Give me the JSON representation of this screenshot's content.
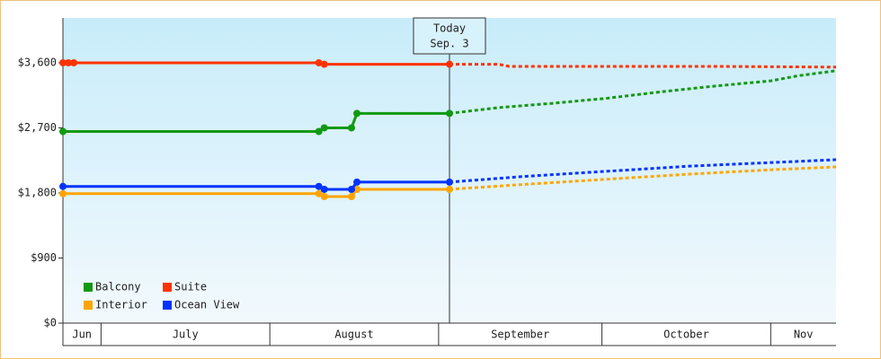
{
  "chart_data": {
    "type": "line",
    "xlim": [
      0,
      142
    ],
    "ylim": [
      0,
      4220
    ],
    "yticks": [
      {
        "value": 0,
        "label": "$0"
      },
      {
        "value": 900,
        "label": "$900"
      },
      {
        "value": 1800,
        "label": "$1,800"
      },
      {
        "value": 2700,
        "label": "$2,700"
      },
      {
        "value": 3600,
        "label": "$3,600"
      }
    ],
    "months": [
      {
        "label": "Jun",
        "end": 7
      },
      {
        "label": "July",
        "end": 38
      },
      {
        "label": "August",
        "end": 69
      },
      {
        "label": "September",
        "end": 99
      },
      {
        "label": "October",
        "end": 130
      },
      {
        "label": "Nov"
      }
    ],
    "today": {
      "x": 71,
      "label": "Today",
      "date": "Sep. 3"
    },
    "series": [
      {
        "name": "Balcony",
        "color": "#119911",
        "x": [
          0,
          47,
          48,
          53,
          54,
          71
        ],
        "values": [
          2650,
          2650,
          2700,
          2700,
          2900,
          2900
        ],
        "forecast": {
          "x": [
            71,
            80,
            90,
            100,
            110,
            120,
            130,
            135,
            142
          ],
          "values": [
            2900,
            2980,
            3040,
            3110,
            3200,
            3280,
            3350,
            3420,
            3490
          ]
        }
      },
      {
        "name": "Suite",
        "color": "#ff3300",
        "x": [
          0,
          1,
          2,
          47,
          48,
          71
        ],
        "values": [
          3600,
          3600,
          3600,
          3600,
          3580,
          3580
        ],
        "forecast": {
          "x": [
            71,
            80,
            82,
            100,
            120,
            142
          ],
          "values": [
            3580,
            3580,
            3550,
            3550,
            3550,
            3540
          ]
        }
      },
      {
        "name": "Interior",
        "color": "#ffa500",
        "x": [
          0,
          47,
          48,
          53,
          54,
          71
        ],
        "values": [
          1790,
          1790,
          1750,
          1750,
          1850,
          1850
        ],
        "forecast": {
          "x": [
            71,
            85,
            100,
            115,
            130,
            142
          ],
          "values": [
            1850,
            1920,
            1990,
            2060,
            2120,
            2160
          ]
        }
      },
      {
        "name": "Ocean View",
        "color": "#0033ff",
        "x": [
          0,
          47,
          48,
          53,
          54,
          71
        ],
        "values": [
          1890,
          1890,
          1850,
          1850,
          1950,
          1950
        ],
        "forecast": {
          "x": [
            71,
            85,
            100,
            115,
            130,
            142
          ],
          "values": [
            1950,
            2030,
            2100,
            2170,
            2220,
            2260
          ]
        }
      }
    ]
  }
}
